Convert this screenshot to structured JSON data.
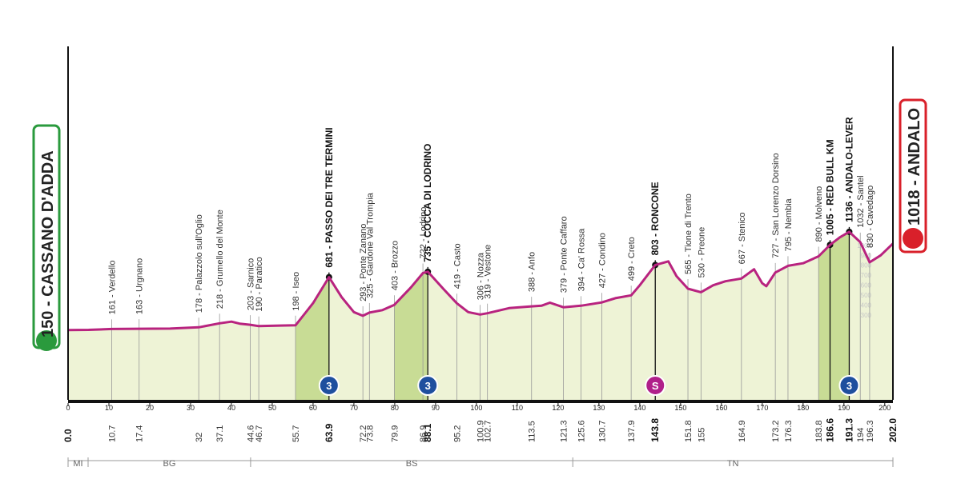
{
  "chart_data": {
    "type": "area",
    "color": "#b8237f",
    "fill": "#eef3d6",
    "climb_fill": "#c8dc95",
    "xlim": [
      0,
      202
    ],
    "xticks": [
      0,
      10,
      20,
      30,
      40,
      50,
      60,
      70,
      80,
      90,
      100,
      110,
      120,
      130,
      140,
      150,
      160,
      170,
      180,
      190,
      200
    ],
    "ylim": [
      -550,
      2900
    ],
    "yticks": [
      300,
      400,
      500,
      600,
      700,
      800,
      900,
      1000
    ],
    "x": [
      0,
      5,
      10.7,
      17.4,
      25,
      32,
      37.1,
      40,
      42,
      44.6,
      46.7,
      52,
      55.7,
      60,
      63.9,
      67,
      70,
      72.2,
      73.8,
      77,
      79.9,
      84,
      86.9,
      88.1,
      92,
      95.2,
      98,
      100.9,
      102.7,
      108,
      113.5,
      116,
      118,
      121.3,
      125.6,
      130.7,
      134,
      137.9,
      140,
      143.8,
      147,
      149,
      151.8,
      155,
      158,
      161,
      164.9,
      168,
      170,
      171,
      173.2,
      176.3,
      180,
      183.8,
      186.6,
      189,
      191.3,
      194,
      196.3,
      199,
      202
    ],
    "values": [
      150,
      152,
      161,
      163,
      165,
      178,
      218,
      235,
      215,
      203,
      190,
      195,
      198,
      420,
      681,
      480,
      330,
      293,
      325,
      350,
      403,
      580,
      722,
      735,
      560,
      419,
      330,
      306,
      319,
      370,
      388,
      395,
      425,
      379,
      394,
      427,
      470,
      499,
      600,
      803,
      840,
      690,
      565,
      530,
      600,
      640,
      667,
      760,
      620,
      590,
      727,
      795,
      820,
      890,
      1005,
      1080,
      1136,
      1032,
      830,
      900,
      1018
    ],
    "start": {
      "value": 150,
      "label": "150 - CASSANO D'ADDA"
    },
    "finish": {
      "value": 1018,
      "label": "1018 - ANDALO"
    },
    "waypoints": [
      {
        "km": {
          "value": 0,
          "label": "0.0"
        },
        "bold": true
      },
      {
        "km": 10.7,
        "name": {
          "value": 161,
          "label": "161 - Verdello"
        },
        "bold": false
      },
      {
        "km": 17.4,
        "name": {
          "value": 163,
          "label": "163 - Urgnano"
        },
        "bold": false
      },
      {
        "km": 32,
        "name": {
          "value": 178,
          "label": "178 - Palazzolo sull'Oglio"
        },
        "bold": false
      },
      {
        "km": 37.1,
        "name": {
          "value": 218,
          "label": "218 - Grumello del Monte"
        },
        "bold": false
      },
      {
        "km": 44.6,
        "name": {
          "value": 203,
          "label": "203 - Sarnico"
        },
        "bold": false
      },
      {
        "km": 46.7,
        "name": {
          "value": 190,
          "label": "190 - Paratico"
        },
        "bold": false
      },
      {
        "km": 55.7,
        "name": {
          "value": 198,
          "label": "198 - Iseo"
        },
        "bold": false
      },
      {
        "km": 63.9,
        "name": {
          "value": 681,
          "label": "681 - PASSO DEI TRE TERMINI"
        },
        "bold": true
      },
      {
        "km": 72.2,
        "name": {
          "value": 293,
          "label": "293 - Ponte Zanano"
        },
        "bold": false
      },
      {
        "km": 73.8,
        "name": {
          "value": 325,
          "label": "325 - Gardone Val Trompia"
        },
        "bold": false
      },
      {
        "km": 79.9,
        "name": {
          "value": 403,
          "label": "403 - Brozzo"
        },
        "bold": false
      },
      {
        "km": 86.9,
        "name": {
          "value": 722,
          "label": "722 - Lodrino"
        },
        "bold": false
      },
      {
        "km": 88.1,
        "name": {
          "value": 735,
          "label": "735 - COCCA DI LODRINO"
        },
        "bold": true
      },
      {
        "km": 95.2,
        "name": {
          "value": 419,
          "label": "419 - Casto"
        },
        "bold": false
      },
      {
        "km": 100.9,
        "name": {
          "value": 306,
          "label": "306 - Nozza"
        },
        "bold": false
      },
      {
        "km": 102.7,
        "name": {
          "value": 319,
          "label": "319 - Vestone"
        },
        "bold": false
      },
      {
        "km": 113.5,
        "name": {
          "value": 388,
          "label": "388 - Anfo"
        },
        "bold": false
      },
      {
        "km": 121.3,
        "name": {
          "value": 379,
          "label": "379 - Ponte Caffaro"
        },
        "bold": false
      },
      {
        "km": 125.6,
        "name": {
          "value": 394,
          "label": "394 - Ca' Rossa"
        },
        "bold": false
      },
      {
        "km": 130.7,
        "name": {
          "value": 427,
          "label": "427 - Condino"
        },
        "bold": false
      },
      {
        "km": 137.9,
        "name": {
          "value": 499,
          "label": "499 - Creto"
        },
        "bold": false
      },
      {
        "km": 143.8,
        "name": {
          "value": 803,
          "label": "803 - RONCONE"
        },
        "bold": true
      },
      {
        "km": 151.8,
        "name": {
          "value": 565,
          "label": "565 - Tione di Trento"
        },
        "bold": false
      },
      {
        "km": 155,
        "name": {
          "value": 530,
          "label": "530 - Preone"
        },
        "bold": false
      },
      {
        "km": 164.9,
        "name": {
          "value": 667,
          "label": "667 - Stenico"
        },
        "bold": false
      },
      {
        "km": 173.2,
        "name": {
          "value": 727,
          "label": "727 - San Lorenzo Dorsino"
        },
        "bold": false
      },
      {
        "km": 176.3,
        "name": {
          "value": 795,
          "label": "795 - Nembia"
        },
        "bold": false
      },
      {
        "km": 183.8,
        "name": {
          "value": 890,
          "label": "890 - Molveno"
        },
        "bold": false
      },
      {
        "km": 186.6,
        "name": {
          "value": 1005,
          "label": "1005 - RED BULL KM"
        },
        "bold": true
      },
      {
        "km": 191.3,
        "name": {
          "value": 1136,
          "label": "1136 - ANDALO-LEVER"
        },
        "bold": true
      },
      {
        "km": 194,
        "name": {
          "value": 1032,
          "label": "1032 - Santel"
        },
        "bold": false
      },
      {
        "km": 196.3,
        "name": {
          "value": 830,
          "label": "830 - Cavedago"
        },
        "bold": false
      },
      {
        "km": {
          "value": 202,
          "label": "202.0"
        },
        "bold": true
      }
    ],
    "climbs": [
      {
        "from": 55.7,
        "to": 63.9
      },
      {
        "from": 79.9,
        "to": 88.1
      },
      {
        "from": 183.8,
        "to": 191.3
      }
    ],
    "markers": [
      {
        "km": 63.9,
        "label": 3,
        "color": "#1f4f9e"
      },
      {
        "km": 88.1,
        "label": 3,
        "color": "#1f4f9e"
      },
      {
        "km": 143.8,
        "label": "S",
        "color": "#b0208a"
      },
      {
        "km": 191.3,
        "label": 3,
        "color": "#1f4f9e"
      }
    ],
    "regions": [
      {
        "name": "MI",
        "from": 0,
        "to": 4.9
      },
      {
        "name": "BG",
        "from": 4.9,
        "to": 44.7
      },
      {
        "name": "BS",
        "from": 44.7,
        "to": 123.6
      },
      {
        "name": "TN",
        "from": 123.6,
        "to": 202
      }
    ]
  }
}
